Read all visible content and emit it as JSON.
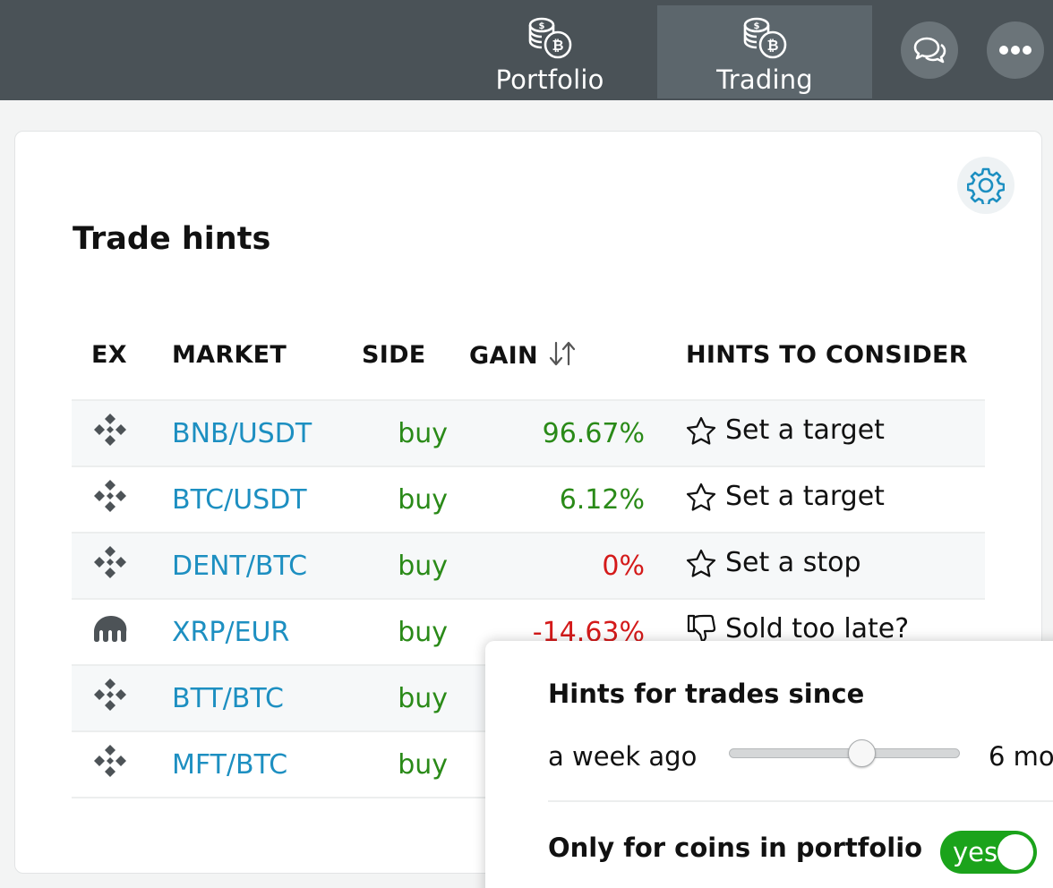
{
  "nav": {
    "tabs": [
      {
        "label": "Portfolio",
        "icon": "coins-bitcoin-icon",
        "active": false
      },
      {
        "label": "Trading",
        "icon": "coins-bitcoin-icon",
        "active": true
      }
    ],
    "chat_icon": "chat-bubbles-icon",
    "more_icon": "more-dots-icon"
  },
  "card": {
    "title": "Trade hints",
    "settings_icon": "gear-icon",
    "columns": {
      "ex": "EX",
      "market": "MARKET",
      "side": "SIDE",
      "gain": "GAIN",
      "hints": "HINTS TO CONSIDER"
    },
    "rows": [
      {
        "exchange_icon": "binance-icon",
        "market": "BNB/USDT",
        "side": "buy",
        "gain": "96.67%",
        "gain_type": "pos",
        "hint_icon": "star-icon",
        "hint": "Set a target"
      },
      {
        "exchange_icon": "binance-icon",
        "market": "BTC/USDT",
        "side": "buy",
        "gain": "6.12%",
        "gain_type": "pos",
        "hint_icon": "star-icon",
        "hint": "Set a target"
      },
      {
        "exchange_icon": "binance-icon",
        "market": "DENT/BTC",
        "side": "buy",
        "gain": "0%",
        "gain_type": "zero",
        "hint_icon": "star-icon",
        "hint": "Set a stop"
      },
      {
        "exchange_icon": "kraken-icon",
        "market": "XRP/EUR",
        "side": "buy",
        "gain": "-14.63%",
        "gain_type": "neg",
        "hint_icon": "thumbs-down-icon",
        "hint": "Sold too late?"
      },
      {
        "exchange_icon": "binance-icon",
        "market": "BTT/BTC",
        "side": "buy",
        "gain": "",
        "gain_type": "pos",
        "hint_icon": "",
        "hint": ""
      },
      {
        "exchange_icon": "binance-icon",
        "market": "MFT/BTC",
        "side": "buy",
        "gain": "",
        "gain_type": "pos",
        "hint_icon": "",
        "hint": ""
      }
    ]
  },
  "popover": {
    "title": "Hints for trades since",
    "slider_min_label": "a week ago",
    "slider_max_label": "6 mo",
    "slider_value_fraction": 0.58,
    "portfolio_only_label": "Only for coins in portfolio",
    "toggle_label": "yes",
    "toggle_on": true
  },
  "colors": {
    "topbar": "#4a5257",
    "link": "#1d8fc1",
    "positive": "#2a8a18",
    "negative": "#d41a1a",
    "toggle_on": "#1ba31b"
  }
}
